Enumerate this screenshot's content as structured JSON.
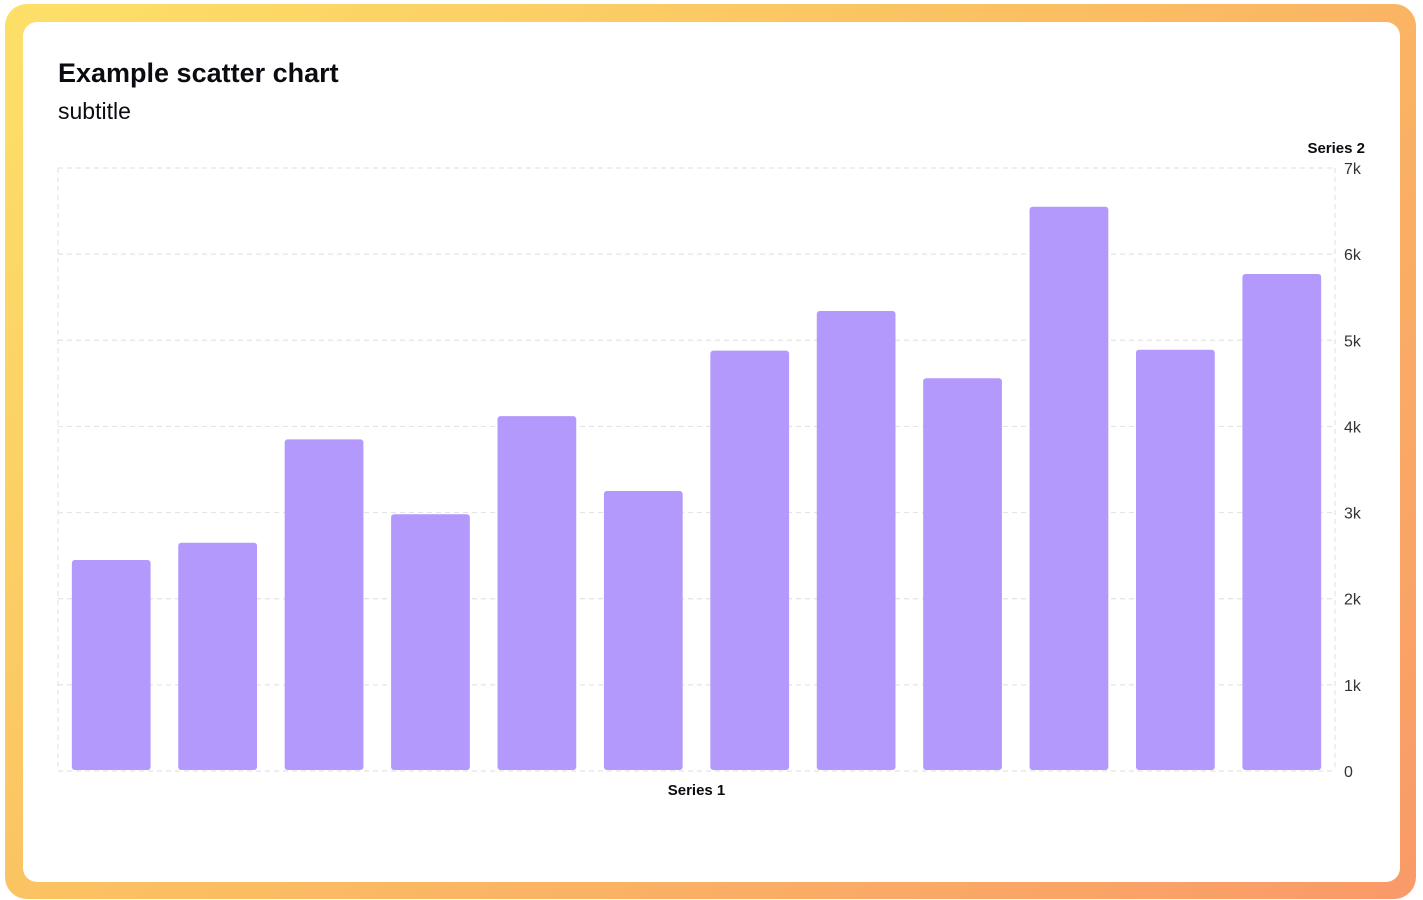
{
  "chart_data": {
    "type": "bar",
    "title": "Example scatter chart",
    "subtitle": "subtitle",
    "xlabel": "Series 1",
    "ylabel": "Series 2",
    "y_axis_position": "right",
    "ylim": [
      0,
      7000
    ],
    "yticks": [
      0,
      1000,
      2000,
      3000,
      4000,
      5000,
      6000,
      7000
    ],
    "ytick_labels": [
      "0",
      "1k",
      "2k",
      "3k",
      "4k",
      "5k",
      "6k",
      "7k"
    ],
    "grid": true,
    "bar_color": "#b399fc",
    "grid_color": "#e4e4e7",
    "series": [
      {
        "values": [
          2450,
          2650,
          3850,
          2980,
          4120,
          3250,
          4880,
          5340,
          4560,
          6550,
          4890,
          5770
        ]
      }
    ]
  },
  "colors": {
    "frame_gradient_start": "#fde068",
    "frame_gradient_end": "#f99a68",
    "card_background": "#ffffff",
    "text": "#0b0b12"
  }
}
